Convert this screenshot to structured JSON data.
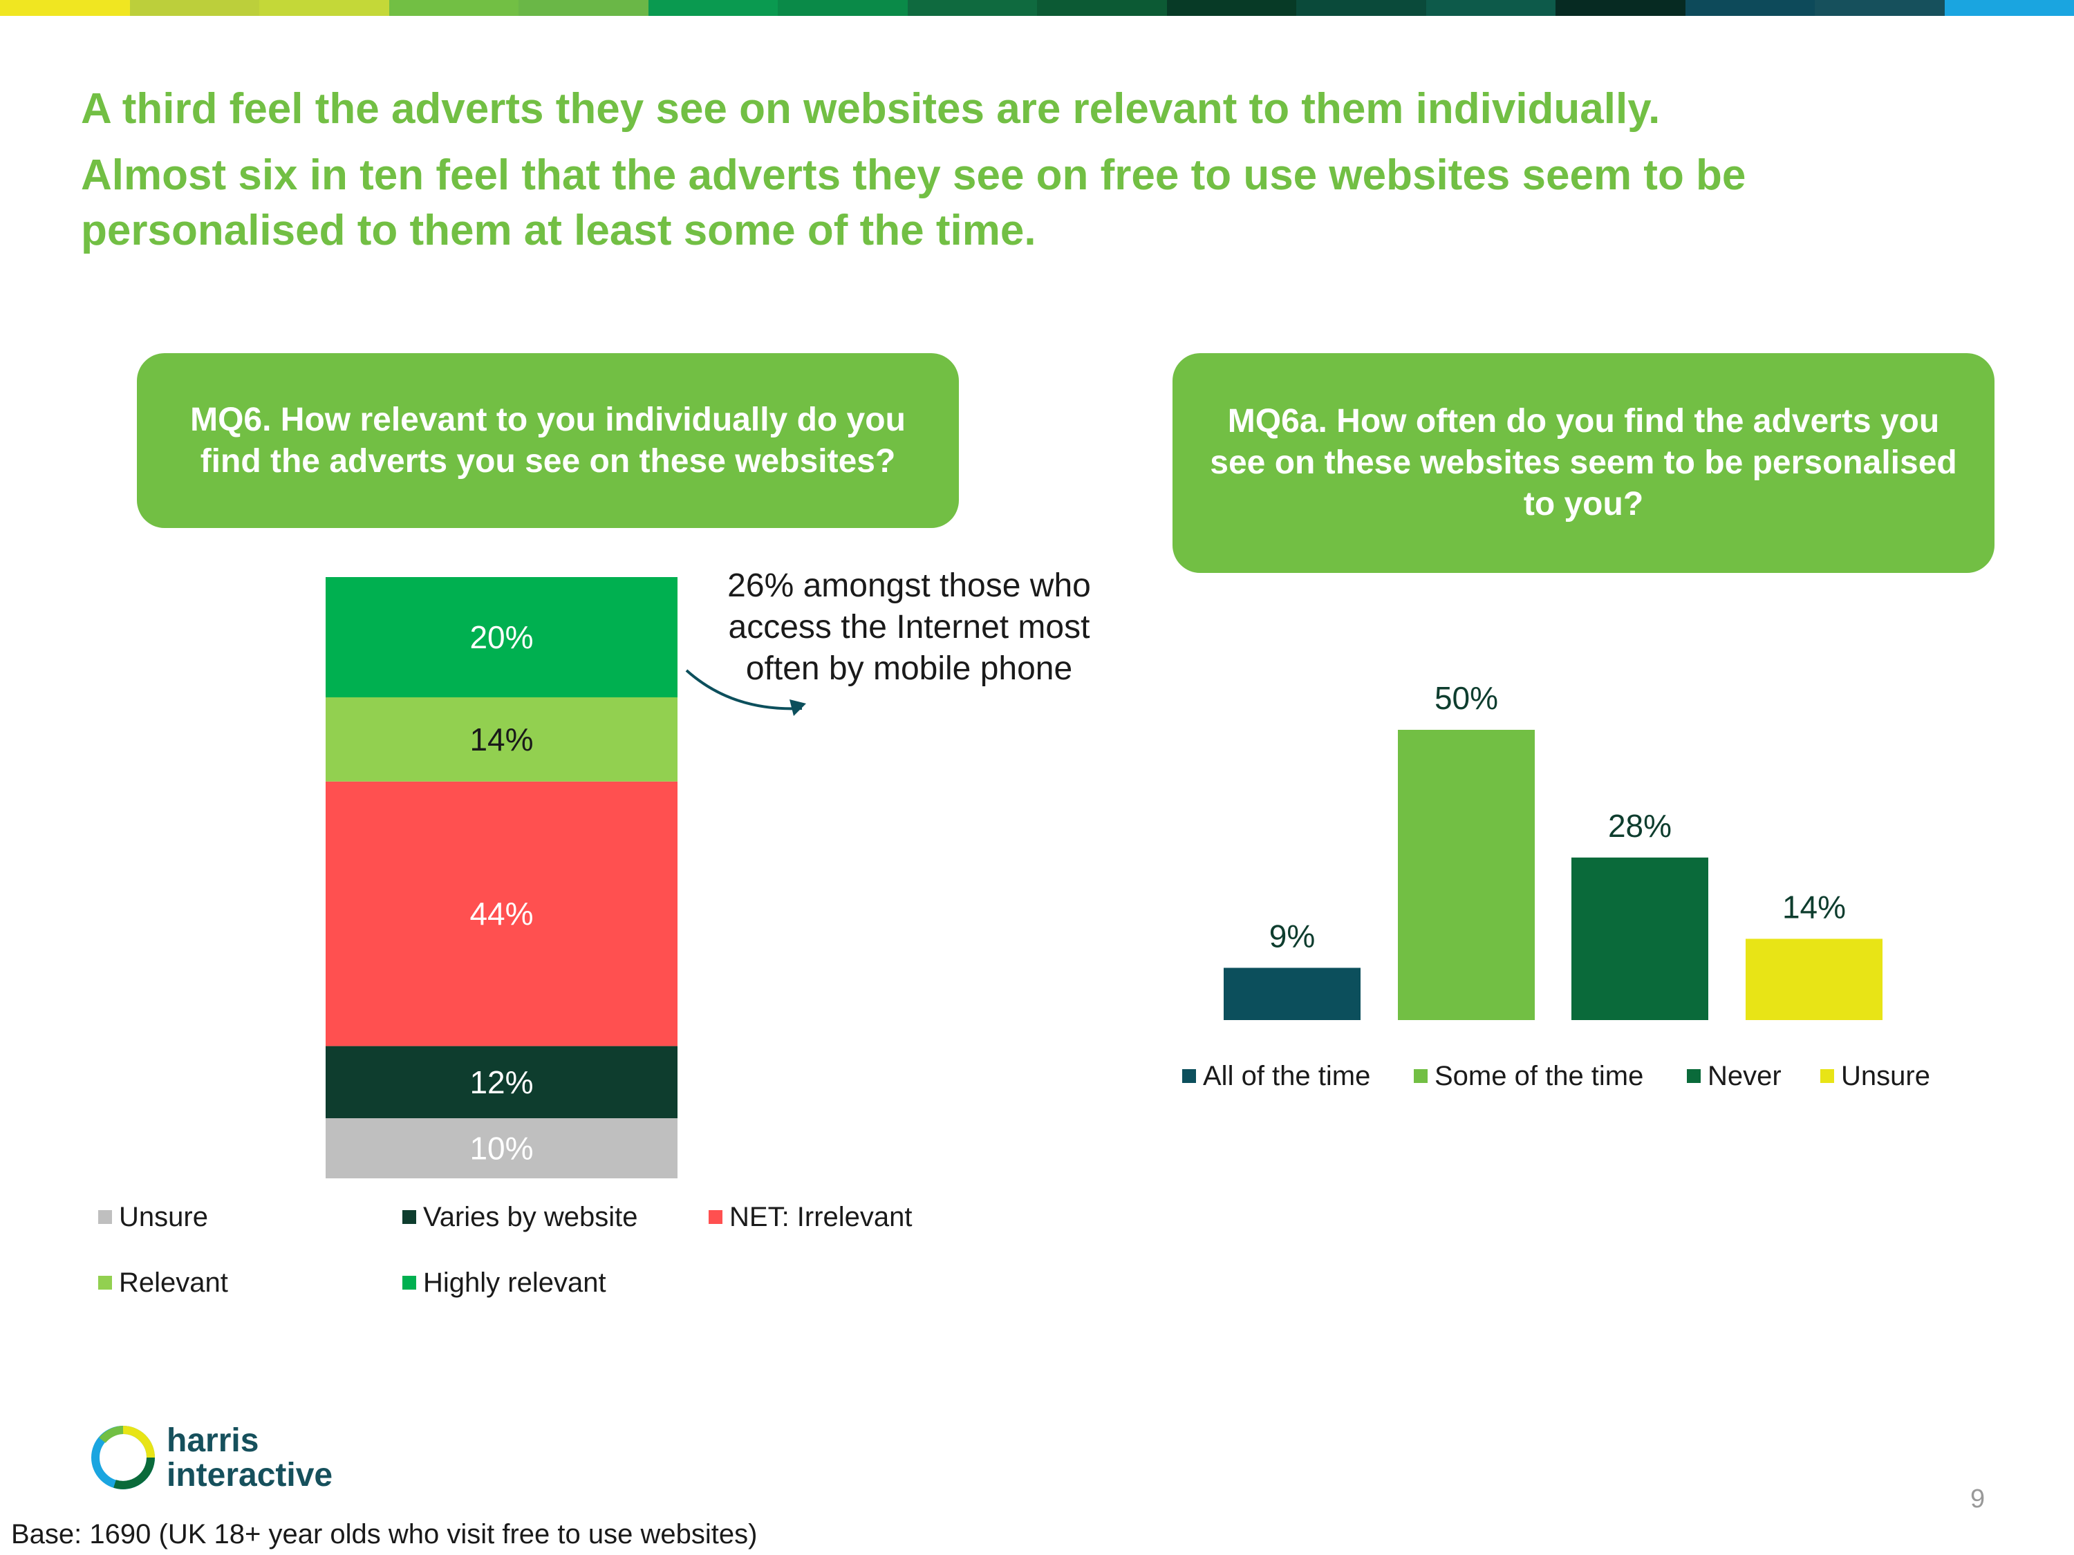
{
  "headline": {
    "line1": "A third feel the adverts they see on websites are relevant to them individually.",
    "line2": "Almost six in ten feel that the adverts they see on free to use websites seem to be personalised to them at least some of the time."
  },
  "colors": {
    "brand_green": "#72bf44",
    "highly_relevant": "#00b050",
    "relevant": "#92d050",
    "irrelevant": "#ff5050",
    "varies": "#0e3d2e",
    "unsure_grey": "#bfbfbf",
    "all_time": "#0c4f5c",
    "some_time": "#72bf44",
    "never": "#0a6a3a",
    "unsure_yellow": "#e8e416",
    "stripe": [
      "#f0e621",
      "#bccf3b",
      "#c4d838",
      "#72bf44",
      "#6ab747",
      "#0a9a50",
      "#0a8a48",
      "#0f6a3f",
      "#0c5a34",
      "#073a26",
      "#0a4a3a",
      "#0d5a4a",
      "#062a22",
      "#0d4a5a",
      "#16505c",
      "#1aa5e0"
    ]
  },
  "chart_data": [
    {
      "type": "bar",
      "stacked": true,
      "question": "MQ6. How relevant to you individually do you find the adverts you see on these websites?",
      "series": [
        {
          "name": "Unsure",
          "value": 10,
          "label": "10%",
          "color": "#bfbfbf",
          "label_color": "#ffffff"
        },
        {
          "name": "Varies by website",
          "value": 12,
          "label": "12%",
          "color": "#0e3d2e",
          "label_color": "#ffffff"
        },
        {
          "name": "NET: Irrelevant",
          "value": 44,
          "label": "44%",
          "color": "#ff5050",
          "label_color": "#ffffff"
        },
        {
          "name": "Relevant",
          "value": 14,
          "label": "14%",
          "color": "#92d050",
          "label_color": "#1a1a1a"
        },
        {
          "name": "Highly relevant",
          "value": 20,
          "label": "20%",
          "color": "#00b050",
          "label_color": "#ffffff"
        }
      ],
      "annotation": "26% amongst those who access the Internet most often by mobile phone",
      "legend_position": "bottom"
    },
    {
      "type": "bar",
      "question": "MQ6a. How often do you find the adverts you see on these websites seem to be personalised to you?",
      "categories": [
        "All of the time",
        "Some of the time",
        "Never",
        "Unsure"
      ],
      "values": [
        9,
        50,
        28,
        14
      ],
      "labels": [
        "9%",
        "50%",
        "28%",
        "14%"
      ],
      "colors": [
        "#0c4f5c",
        "#72bf44",
        "#0a6a3a",
        "#e8e416"
      ],
      "ylim": [
        0,
        60
      ],
      "legend_position": "bottom"
    }
  ],
  "footer": {
    "logo_line1": "harris",
    "logo_line2": "interactive",
    "page_number": "9",
    "base_note": "Base: 1690 (UK 18+ year olds who visit free to use websites)"
  }
}
